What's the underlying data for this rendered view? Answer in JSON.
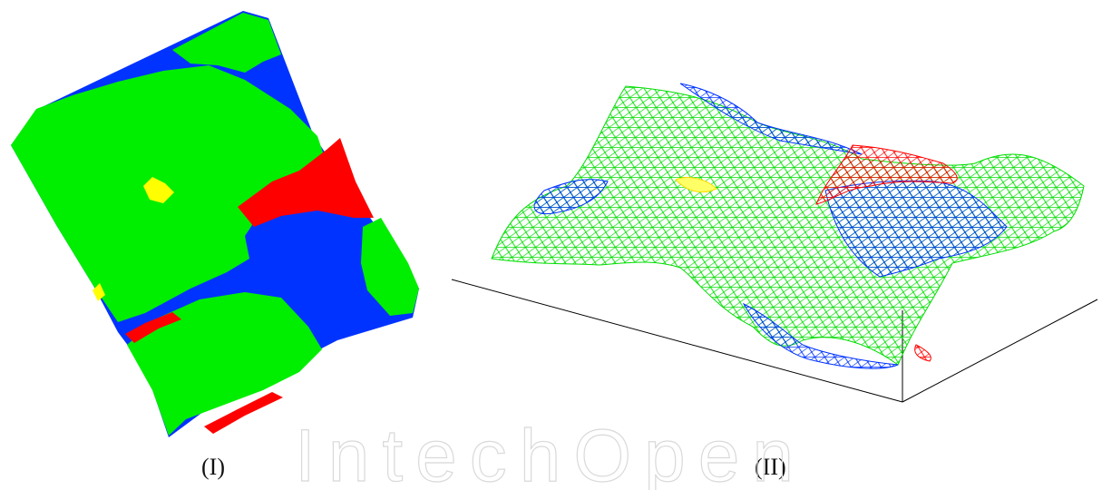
{
  "figures": [
    {
      "caption": "(I)",
      "type": "zone-map-2d"
    },
    {
      "caption": "(II)",
      "type": "mesh-surface-3d"
    }
  ],
  "colors": {
    "high": "#ff0000",
    "medium": "#0033ff",
    "low": "#00ee00",
    "special": "#ffff00",
    "axis": "#000000"
  },
  "watermark": "IntechOpen"
}
